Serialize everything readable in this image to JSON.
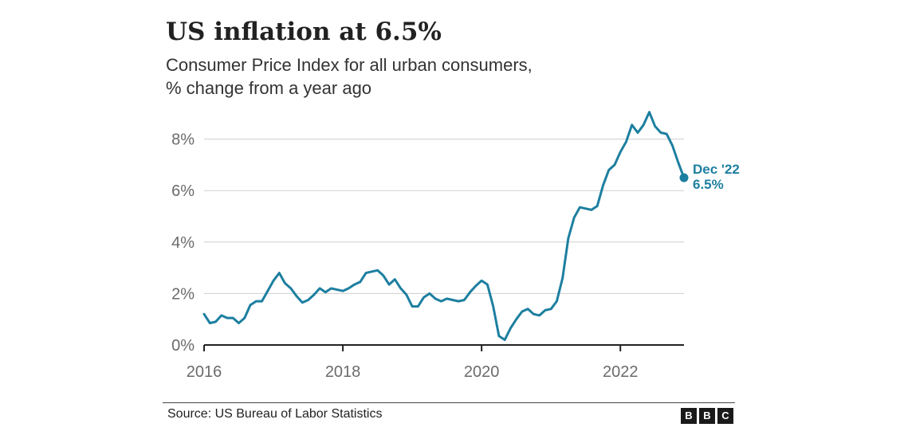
{
  "title": "US inflation at 6.5%",
  "subtitle_lines": [
    "Consumer Price Index for all urban consumers,",
    "% change from a year ago"
  ],
  "source": "Source: US Bureau of Labor Statistics",
  "logo": [
    "B",
    "B",
    "C"
  ],
  "colors": {
    "line": "#1d7fa0",
    "grid": "#cfcfcf",
    "axis": "#222222",
    "tick_text": "#6b6b6b"
  },
  "chart_data": {
    "type": "line",
    "title": "US inflation at 6.5%",
    "subtitle": "Consumer Price Index for all urban consumers, % change from a year ago",
    "xlabel": "",
    "ylabel": "",
    "xlim": [
      "2016-01",
      "2022-12"
    ],
    "ylim": [
      0,
      9
    ],
    "x_ticks": [
      "2016",
      "2018",
      "2020",
      "2022"
    ],
    "y_ticks": [
      "0%",
      "2%",
      "4%",
      "6%",
      "8%"
    ],
    "grid": "horizontal",
    "annotation": {
      "x": "2022-12",
      "y": 6.5,
      "lines": [
        "Dec '22",
        "6.5%"
      ]
    },
    "series": [
      {
        "x": [
          "2016-01",
          "2016-02",
          "2016-03",
          "2016-04",
          "2016-05",
          "2016-06",
          "2016-07",
          "2016-08",
          "2016-09",
          "2016-10",
          "2016-11",
          "2016-12",
          "2017-01",
          "2017-02",
          "2017-03",
          "2017-04",
          "2017-05",
          "2017-06",
          "2017-07",
          "2017-08",
          "2017-09",
          "2017-10",
          "2017-11",
          "2017-12",
          "2018-01",
          "2018-02",
          "2018-03",
          "2018-04",
          "2018-05",
          "2018-06",
          "2018-07",
          "2018-08",
          "2018-09",
          "2018-10",
          "2018-11",
          "2018-12",
          "2019-01",
          "2019-02",
          "2019-03",
          "2019-04",
          "2019-05",
          "2019-06",
          "2019-07",
          "2019-08",
          "2019-09",
          "2019-10",
          "2019-11",
          "2019-12",
          "2020-01",
          "2020-02",
          "2020-03",
          "2020-04",
          "2020-05",
          "2020-06",
          "2020-07",
          "2020-08",
          "2020-09",
          "2020-10",
          "2020-11",
          "2020-12",
          "2021-01",
          "2021-02",
          "2021-03",
          "2021-04",
          "2021-05",
          "2021-06",
          "2021-07",
          "2021-08",
          "2021-09",
          "2021-10",
          "2021-11",
          "2021-12",
          "2022-01",
          "2022-02",
          "2022-03",
          "2022-04",
          "2022-05",
          "2022-06",
          "2022-07",
          "2022-08",
          "2022-09",
          "2022-10",
          "2022-11",
          "2022-12"
        ],
        "values": [
          1.2,
          0.85,
          0.9,
          1.15,
          1.05,
          1.05,
          0.85,
          1.05,
          1.55,
          1.7,
          1.7,
          2.1,
          2.5,
          2.8,
          2.4,
          2.2,
          1.9,
          1.65,
          1.75,
          1.95,
          2.2,
          2.05,
          2.2,
          2.15,
          2.1,
          2.2,
          2.35,
          2.45,
          2.8,
          2.85,
          2.9,
          2.7,
          2.35,
          2.55,
          2.2,
          1.95,
          1.5,
          1.5,
          1.85,
          2.0,
          1.8,
          1.7,
          1.8,
          1.75,
          1.7,
          1.75,
          2.05,
          2.3,
          2.5,
          2.35,
          1.5,
          0.35,
          0.2,
          0.65,
          1.0,
          1.3,
          1.4,
          1.2,
          1.15,
          1.35,
          1.4,
          1.7,
          2.6,
          4.15,
          4.95,
          5.35,
          5.3,
          5.25,
          5.4,
          6.2,
          6.8,
          7.0,
          7.5,
          7.9,
          8.55,
          8.25,
          8.55,
          9.05,
          8.5,
          8.25,
          8.2,
          7.75,
          7.1,
          6.5
        ]
      }
    ]
  }
}
